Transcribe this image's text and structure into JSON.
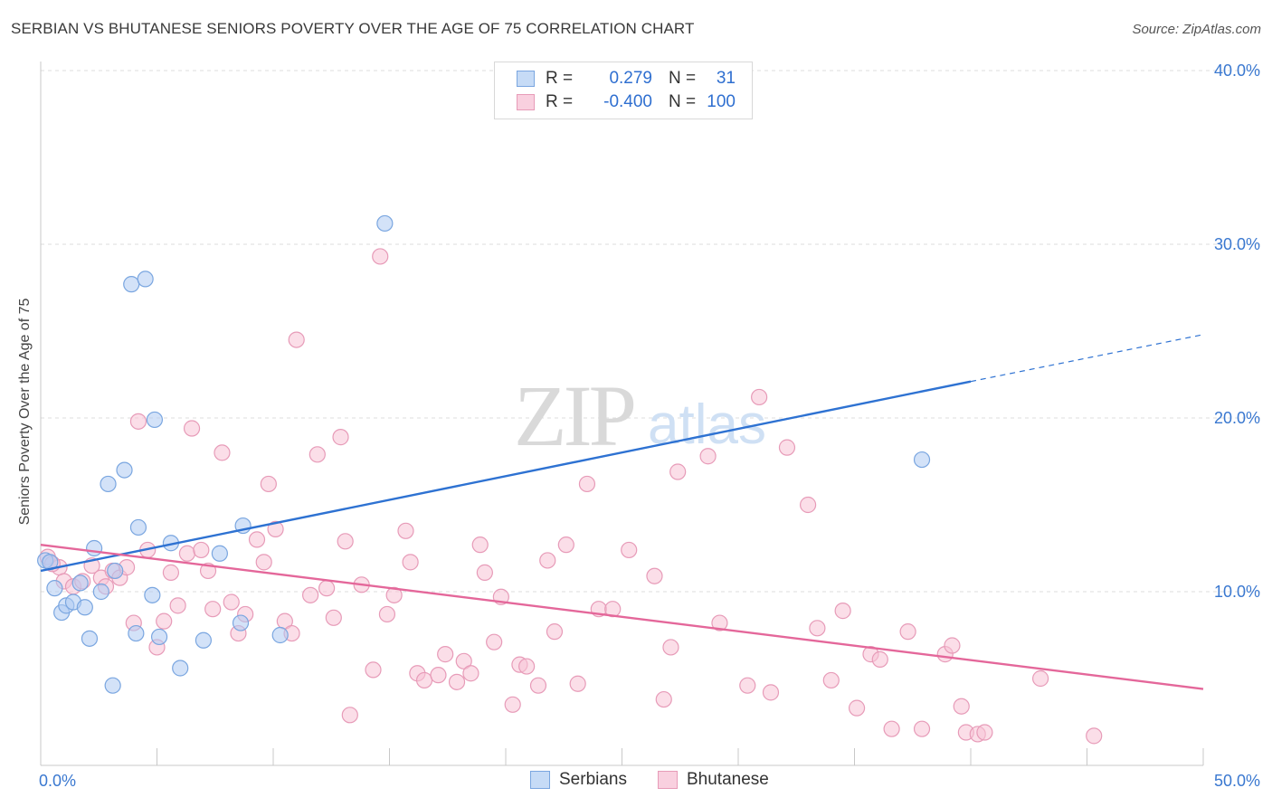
{
  "header": {
    "title": "SERBIAN VS BHUTANESE SENIORS POVERTY OVER THE AGE OF 75 CORRELATION CHART",
    "source": "Source: ZipAtlas.com"
  },
  "watermark": {
    "zip": "ZIP",
    "atlas": "atlas"
  },
  "legend_box": {
    "rows": [
      {
        "r_label": "R =",
        "r_value": "0.279",
        "n_label": "N =",
        "n_value": "31"
      },
      {
        "r_label": "R =",
        "r_value": "-0.400",
        "n_label": "N =",
        "n_value": "100"
      }
    ]
  },
  "bottom_legend": {
    "serbians": "Serbians",
    "bhutanese": "Bhutanese"
  },
  "colors": {
    "serbian_fill": "#aecbf2",
    "serbian_stroke": "#7aa6e0",
    "serbian_line": "#2e72d2",
    "bhutanese_fill": "#f7c3d6",
    "bhutanese_stroke": "#e79bb8",
    "bhutanese_line": "#e4679a",
    "tick_label": "#3a78d0",
    "grid": "#dddddd"
  },
  "chart_data": {
    "type": "scatter",
    "title": "SERBIAN VS BHUTANESE SENIORS POVERTY OVER THE AGE OF 75 CORRELATION CHART",
    "xlabel": "",
    "ylabel": "Seniors Poverty Over the Age of 75",
    "xlim": [
      0,
      50
    ],
    "ylim": [
      0,
      40
    ],
    "x_tick_labels": [
      "0.0%",
      "50.0%"
    ],
    "y_ticks": [
      10,
      20,
      30,
      40
    ],
    "y_tick_labels": [
      "10.0%",
      "20.0%",
      "30.0%",
      "40.0%"
    ],
    "grid": true,
    "legend_position": "top-center",
    "series": [
      {
        "name": "Serbians",
        "r": 0.279,
        "n": 31,
        "trend": {
          "x0": 0,
          "y0": 11.2,
          "x1": 40,
          "y1": 22.1,
          "dashed_to_x": 50,
          "dashed_to_y": 24.8
        },
        "points": [
          [
            0.2,
            11.8
          ],
          [
            0.4,
            11.7
          ],
          [
            0.6,
            10.2
          ],
          [
            0.9,
            8.8
          ],
          [
            1.1,
            9.2
          ],
          [
            1.4,
            9.4
          ],
          [
            1.7,
            10.5
          ],
          [
            1.9,
            9.1
          ],
          [
            2.1,
            7.3
          ],
          [
            2.3,
            12.5
          ],
          [
            2.6,
            10.0
          ],
          [
            2.9,
            16.2
          ],
          [
            3.2,
            11.2
          ],
          [
            3.6,
            17.0
          ],
          [
            3.9,
            27.7
          ],
          [
            4.1,
            7.6
          ],
          [
            4.2,
            13.7
          ],
          [
            4.5,
            28.0
          ],
          [
            4.8,
            9.8
          ],
          [
            4.9,
            19.9
          ],
          [
            5.1,
            7.4
          ],
          [
            5.6,
            12.8
          ],
          [
            6.0,
            5.6
          ],
          [
            7.0,
            7.2
          ],
          [
            7.7,
            12.2
          ],
          [
            8.6,
            8.2
          ],
          [
            8.7,
            13.8
          ],
          [
            10.3,
            7.5
          ],
          [
            14.8,
            31.2
          ],
          [
            3.1,
            4.6
          ],
          [
            37.9,
            17.6
          ]
        ]
      },
      {
        "name": "Bhutanese",
        "r": -0.4,
        "n": 100,
        "trend": {
          "x0": 0,
          "y0": 12.7,
          "x1": 50,
          "y1": 4.4
        },
        "points": [
          [
            0.3,
            12.0
          ],
          [
            0.8,
            11.4
          ],
          [
            1.0,
            10.6
          ],
          [
            1.4,
            10.3
          ],
          [
            1.8,
            10.6
          ],
          [
            2.2,
            11.5
          ],
          [
            2.6,
            10.8
          ],
          [
            2.8,
            10.3
          ],
          [
            3.1,
            11.2
          ],
          [
            3.4,
            10.8
          ],
          [
            3.7,
            11.4
          ],
          [
            4.0,
            8.2
          ],
          [
            4.2,
            19.8
          ],
          [
            4.6,
            12.4
          ],
          [
            5.0,
            6.8
          ],
          [
            5.3,
            8.3
          ],
          [
            5.6,
            11.1
          ],
          [
            5.9,
            9.2
          ],
          [
            6.3,
            12.2
          ],
          [
            6.5,
            19.4
          ],
          [
            6.9,
            12.4
          ],
          [
            7.2,
            11.2
          ],
          [
            7.4,
            9.0
          ],
          [
            7.8,
            18.0
          ],
          [
            8.2,
            9.4
          ],
          [
            8.5,
            7.6
          ],
          [
            8.8,
            8.7
          ],
          [
            9.3,
            13.0
          ],
          [
            9.6,
            11.7
          ],
          [
            9.8,
            16.2
          ],
          [
            10.1,
            13.6
          ],
          [
            10.5,
            8.3
          ],
          [
            10.8,
            7.6
          ],
          [
            11.0,
            24.5
          ],
          [
            11.6,
            9.8
          ],
          [
            11.9,
            17.9
          ],
          [
            12.3,
            10.2
          ],
          [
            12.6,
            8.5
          ],
          [
            12.9,
            18.9
          ],
          [
            13.1,
            12.9
          ],
          [
            13.3,
            2.9
          ],
          [
            13.8,
            10.4
          ],
          [
            14.3,
            5.5
          ],
          [
            14.6,
            29.3
          ],
          [
            14.9,
            8.7
          ],
          [
            15.2,
            9.8
          ],
          [
            15.7,
            13.5
          ],
          [
            15.9,
            11.7
          ],
          [
            16.2,
            5.3
          ],
          [
            16.5,
            4.9
          ],
          [
            17.1,
            5.2
          ],
          [
            17.4,
            6.4
          ],
          [
            17.9,
            4.8
          ],
          [
            18.2,
            6.0
          ],
          [
            18.5,
            5.3
          ],
          [
            18.9,
            12.7
          ],
          [
            19.1,
            11.1
          ],
          [
            19.5,
            7.1
          ],
          [
            19.8,
            9.7
          ],
          [
            20.3,
            3.5
          ],
          [
            20.6,
            5.8
          ],
          [
            20.9,
            5.7
          ],
          [
            21.4,
            4.6
          ],
          [
            21.8,
            11.8
          ],
          [
            22.1,
            7.7
          ],
          [
            22.6,
            12.7
          ],
          [
            23.1,
            4.7
          ],
          [
            23.5,
            16.2
          ],
          [
            24.0,
            9.0
          ],
          [
            24.6,
            9.0
          ],
          [
            25.3,
            12.4
          ],
          [
            26.4,
            10.9
          ],
          [
            26.8,
            3.8
          ],
          [
            27.1,
            6.8
          ],
          [
            27.4,
            16.9
          ],
          [
            28.7,
            17.8
          ],
          [
            29.2,
            8.2
          ],
          [
            30.4,
            4.6
          ],
          [
            30.9,
            21.2
          ],
          [
            31.4,
            4.2
          ],
          [
            32.1,
            18.3
          ],
          [
            33.0,
            15.0
          ],
          [
            33.4,
            7.9
          ],
          [
            34.0,
            4.9
          ],
          [
            34.5,
            8.9
          ],
          [
            35.1,
            3.3
          ],
          [
            35.7,
            6.4
          ],
          [
            36.1,
            6.1
          ],
          [
            36.6,
            2.1
          ],
          [
            37.3,
            7.7
          ],
          [
            37.9,
            2.1
          ],
          [
            38.9,
            6.4
          ],
          [
            39.2,
            6.9
          ],
          [
            39.6,
            3.4
          ],
          [
            39.8,
            1.9
          ],
          [
            40.3,
            1.8
          ],
          [
            40.6,
            1.9
          ],
          [
            43.0,
            5.0
          ],
          [
            45.3,
            1.7
          ],
          [
            0.5,
            11.6
          ]
        ]
      }
    ]
  }
}
